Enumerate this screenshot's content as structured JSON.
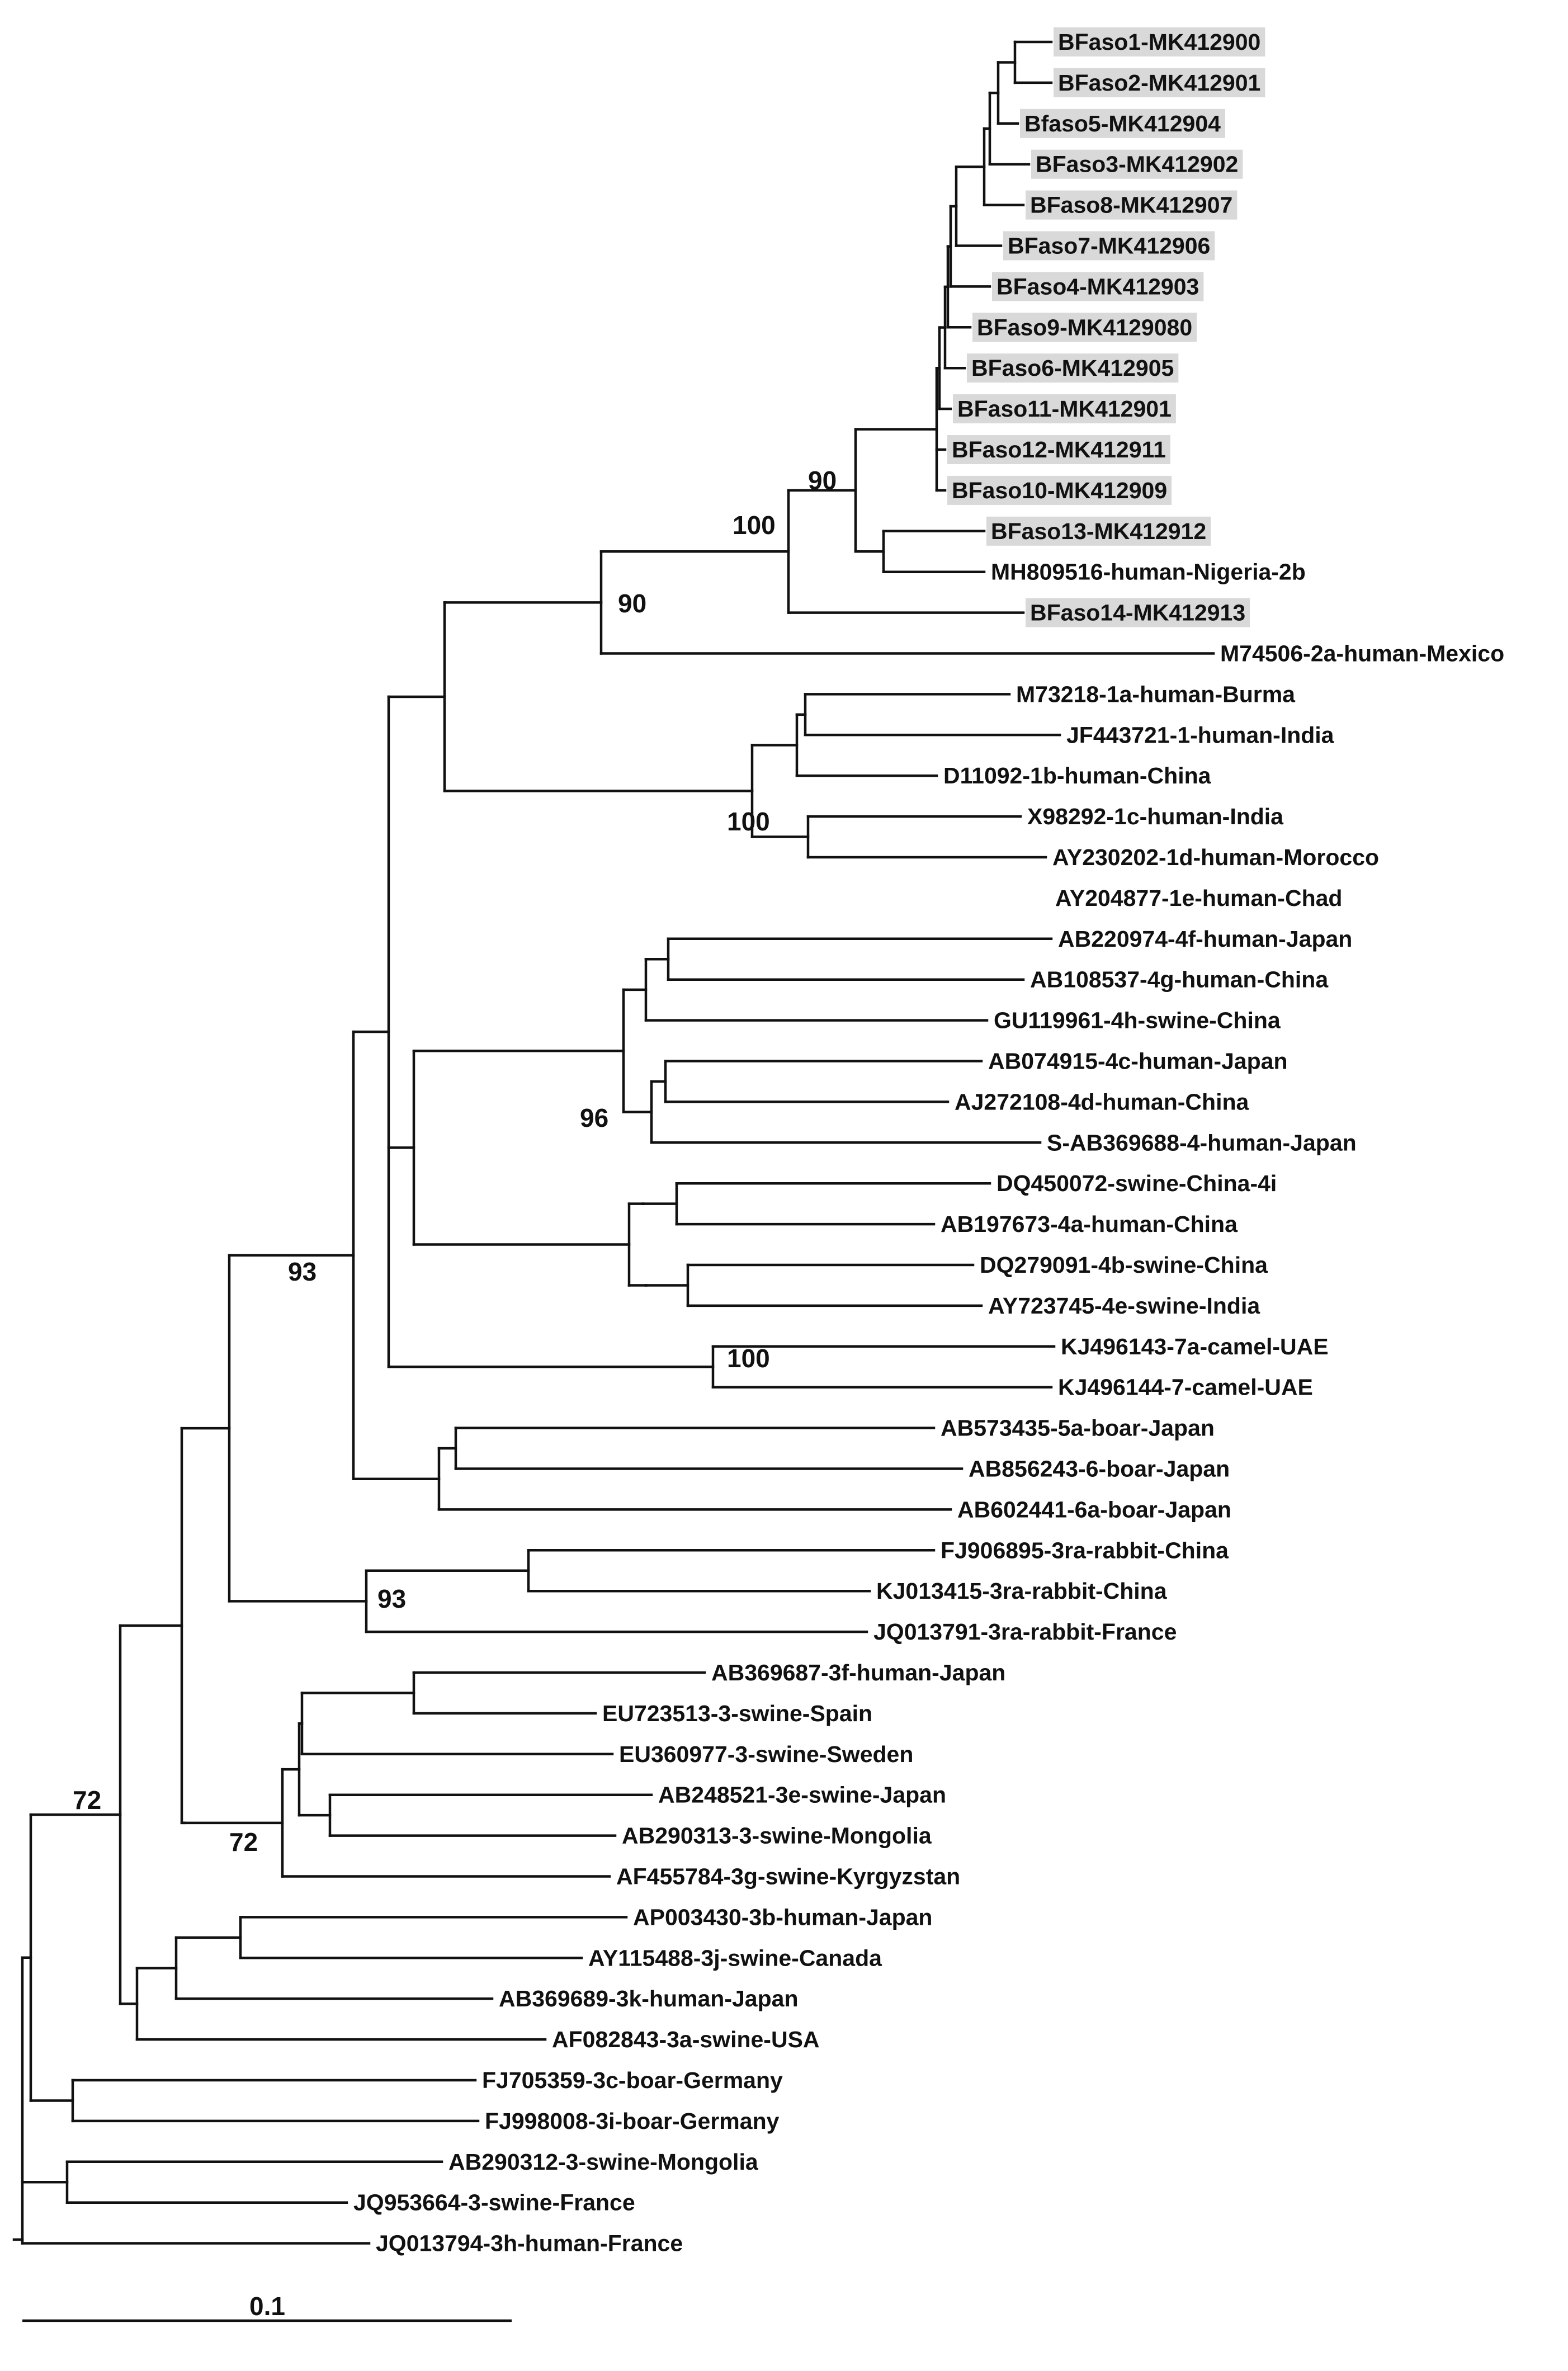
{
  "figure": {
    "type": "phylogenetic-tree",
    "leaves": [
      {
        "label": "BFaso1-MK412900",
        "highlight": true
      },
      {
        "label": "BFaso2-MK412901",
        "highlight": true
      },
      {
        "label": "Bfaso5-MK412904",
        "highlight": true
      },
      {
        "label": "BFaso3-MK412902",
        "highlight": true
      },
      {
        "label": "BFaso8-MK412907",
        "highlight": true
      },
      {
        "label": "BFaso7-MK412906",
        "highlight": true
      },
      {
        "label": "BFaso4-MK412903",
        "highlight": true
      },
      {
        "label": "BFaso9-MK4129080",
        "highlight": true
      },
      {
        "label": "BFaso6-MK412905",
        "highlight": true
      },
      {
        "label": "BFaso11-MK412901",
        "highlight": true
      },
      {
        "label": "BFaso12-MK412911",
        "highlight": true
      },
      {
        "label": "BFaso10-MK412909",
        "highlight": true
      },
      {
        "label": "BFaso13-MK412912",
        "highlight": true
      },
      {
        "label": "MH809516-human-Nigeria-2b",
        "highlight": false
      },
      {
        "label": "BFaso14-MK412913",
        "highlight": true
      },
      {
        "label": "M74506-2a-human-Mexico",
        "highlight": false
      },
      {
        "label": "M73218-1a-human-Burma",
        "highlight": false
      },
      {
        "label": "JF443721-1-human-India",
        "highlight": false
      },
      {
        "label": "D11092-1b-human-China",
        "highlight": false
      },
      {
        "label": "X98292-1c-human-India",
        "highlight": false
      },
      {
        "label": "AY230202-1d-human-Morocco",
        "highlight": false
      },
      {
        "label": "AY204877-1e-human-Chad",
        "highlight": false
      },
      {
        "label": "AB220974-4f-human-Japan",
        "highlight": false
      },
      {
        "label": "AB108537-4g-human-China",
        "highlight": false
      },
      {
        "label": "GU119961-4h-swine-China",
        "highlight": false
      },
      {
        "label": "AB074915-4c-human-Japan",
        "highlight": false
      },
      {
        "label": "AJ272108-4d-human-China",
        "highlight": false
      },
      {
        "label": "S-AB369688-4-human-Japan",
        "highlight": false
      },
      {
        "label": "DQ450072-swine-China-4i",
        "highlight": false
      },
      {
        "label": "AB197673-4a-human-China",
        "highlight": false
      },
      {
        "label": "DQ279091-4b-swine-China",
        "highlight": false
      },
      {
        "label": "AY723745-4e-swine-India",
        "highlight": false
      },
      {
        "label": "KJ496143-7a-camel-UAE",
        "highlight": false
      },
      {
        "label": "KJ496144-7-camel-UAE",
        "highlight": false
      },
      {
        "label": "AB573435-5a-boar-Japan",
        "highlight": false
      },
      {
        "label": "AB856243-6-boar-Japan",
        "highlight": false
      },
      {
        "label": "AB602441-6a-boar-Japan",
        "highlight": false
      },
      {
        "label": "FJ906895-3ra-rabbit-China",
        "highlight": false
      },
      {
        "label": "KJ013415-3ra-rabbit-China",
        "highlight": false
      },
      {
        "label": "JQ013791-3ra-rabbit-France",
        "highlight": false
      },
      {
        "label": "AB369687-3f-human-Japan",
        "highlight": false
      },
      {
        "label": "EU723513-3-swine-Spain",
        "highlight": false
      },
      {
        "label": "EU360977-3-swine-Sweden",
        "highlight": false
      },
      {
        "label": "AB248521-3e-swine-Japan",
        "highlight": false
      },
      {
        "label": "AB290313-3-swine-Mongolia",
        "highlight": false
      },
      {
        "label": "AF455784-3g-swine-Kyrgyzstan",
        "highlight": false
      },
      {
        "label": "AP003430-3b-human-Japan",
        "highlight": false
      },
      {
        "label": "AY115488-3j-swine-Canada",
        "highlight": false
      },
      {
        "label": "AB369689-3k-human-Japan",
        "highlight": false
      },
      {
        "label": "AF082843-3a-swine-USA",
        "highlight": false
      },
      {
        "label": "FJ705359-3c-boar-Germany",
        "highlight": false
      },
      {
        "label": "FJ998008-3i-boar-Germany",
        "highlight": false
      },
      {
        "label": "AB290312-3-swine-Mongolia",
        "highlight": false
      },
      {
        "label": "JQ953664-3-swine-France",
        "highlight": false
      },
      {
        "label": "JQ013794-3h-human-France",
        "highlight": false
      }
    ],
    "bootstrap_values": [
      "90",
      "100",
      "90",
      "100",
      "96",
      "100",
      "93",
      "93",
      "72",
      "72"
    ],
    "scale_bar": {
      "label": "0.1",
      "value": 0.1
    },
    "highlight_color": "#d9d9d9",
    "line_color": "#111111"
  }
}
